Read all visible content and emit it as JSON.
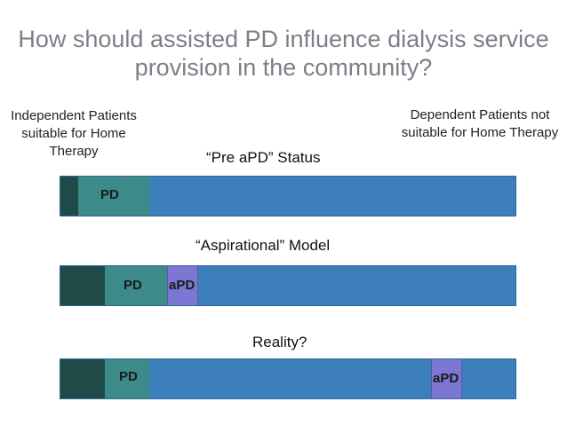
{
  "title": "How should assisted PD influence dialysis service provision in the community?",
  "left_note": "Independent Patients suitable for Home Therapy",
  "right_note": "Dependent Patients not suitable for Home Therapy",
  "rows": [
    {
      "caption": "“Pre aPD” Status",
      "pd_label": "PD",
      "apd_label": ""
    },
    {
      "caption": "“Aspirational” Model",
      "pd_label": "PD",
      "apd_label": "aPD"
    },
    {
      "caption": "Reality?",
      "pd_label": "PD",
      "apd_label": "aPD"
    }
  ],
  "colors": {
    "independent": "#1f4a48",
    "pd": "#3d8a8a",
    "apd": "#7b77d3",
    "dependent": "#3c7fbb"
  }
}
